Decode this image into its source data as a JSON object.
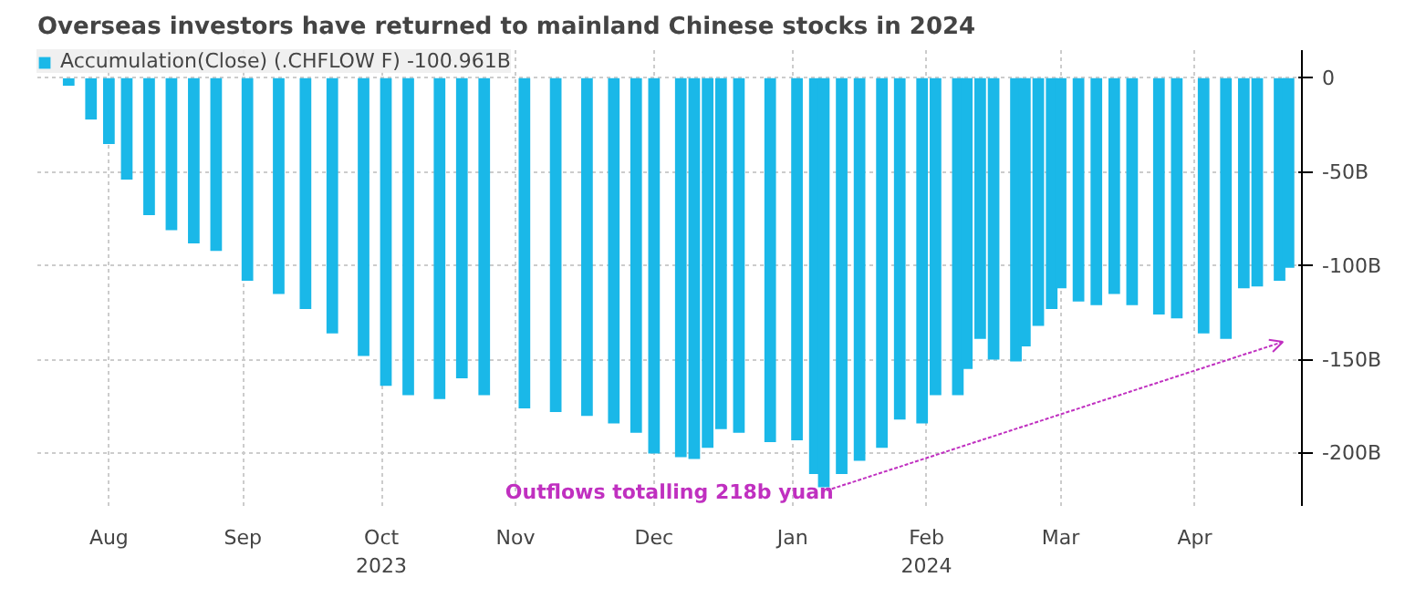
{
  "chart_data": {
    "type": "bar",
    "title": "Overseas investors have returned to mainland Chinese stocks in 2024",
    "x": [
      "2023-08-07",
      "2023-08-12",
      "2023-08-16",
      "2023-08-20",
      "2023-08-25",
      "2023-08-30",
      "2023-09-04",
      "2023-09-09",
      "2023-09-16",
      "2023-09-23",
      "2023-09-29",
      "2023-10-05",
      "2023-10-12",
      "2023-10-17",
      "2023-10-22",
      "2023-10-29",
      "2023-11-03",
      "2023-11-08",
      "2023-11-17",
      "2023-11-24",
      "2023-12-01",
      "2023-12-07",
      "2023-12-12",
      "2023-12-16",
      "2023-12-22",
      "2023-12-25",
      "2023-12-28",
      "2023-12-31",
      "2024-01-04",
      "2024-01-11",
      "2024-01-17",
      "2024-01-21",
      "2024-01-23",
      "2024-01-27",
      "2024-01-31",
      "2024-02-05",
      "2024-02-09",
      "2024-02-14",
      "2024-02-17",
      "2024-02-22",
      "2024-02-24",
      "2024-02-27",
      "2024-03-01",
      "2024-03-06",
      "2024-03-08",
      "2024-03-11",
      "2024-03-14",
      "2024-03-16",
      "2024-03-20",
      "2024-03-24",
      "2024-03-28",
      "2024-04-01",
      "2024-04-07",
      "2024-04-11",
      "2024-04-17",
      "2024-04-22",
      "2024-04-26",
      "2024-04-29",
      "2024-05-04",
      "2024-05-06"
    ],
    "series": [
      {
        "name": "Accumulation(Close) (.CHFLOW F) -100.961B",
        "color": "#1ab8e8",
        "values": [
          -4,
          -22,
          -35,
          -54,
          -73,
          -81,
          -88,
          -92,
          -108,
          -115,
          -123,
          -136,
          -148,
          -164,
          -169,
          -171,
          -160,
          -169,
          -176,
          -178,
          -180,
          -184,
          -189,
          -200,
          -202,
          -203,
          -197,
          -187,
          -189,
          -194,
          -193,
          -211,
          -218,
          -211,
          -204,
          -197,
          -182,
          -184,
          -169,
          -169,
          -155,
          -139,
          -150,
          -151,
          -143,
          -132,
          -123,
          -112,
          -119,
          -121,
          -115,
          -121,
          -126,
          -128,
          -136,
          -139,
          -112,
          -111,
          -108,
          -101
        ]
      }
    ],
    "xlim": [
      "2023-07-31",
      "2024-05-09"
    ],
    "xticks": [
      {
        "value": "2023-08-16",
        "label": "Aug"
      },
      {
        "value": "2023-09-15",
        "label": "Sep"
      },
      {
        "value": "2023-10-16",
        "label": "Oct\n2023"
      },
      {
        "value": "2023-11-15",
        "label": "Nov"
      },
      {
        "value": "2023-12-16",
        "label": "Dec"
      },
      {
        "value": "2024-01-16",
        "label": "Jan"
      },
      {
        "value": "2024-02-15",
        "label": "Feb\n2024"
      },
      {
        "value": "2024-03-16",
        "label": "Mar"
      },
      {
        "value": "2024-04-15",
        "label": "Apr"
      }
    ],
    "ylim": [
      -228,
      15
    ],
    "yticks": [
      {
        "value": 0,
        "label": "0"
      },
      {
        "value": -50,
        "label": "-50B"
      },
      {
        "value": -100,
        "label": "-100B"
      },
      {
        "value": -150,
        "label": "-150B"
      },
      {
        "value": -200,
        "label": "-200B"
      }
    ],
    "annotations": [
      "Outflows totalling 218b yuan"
    ],
    "grid": true,
    "legend": "top left"
  }
}
